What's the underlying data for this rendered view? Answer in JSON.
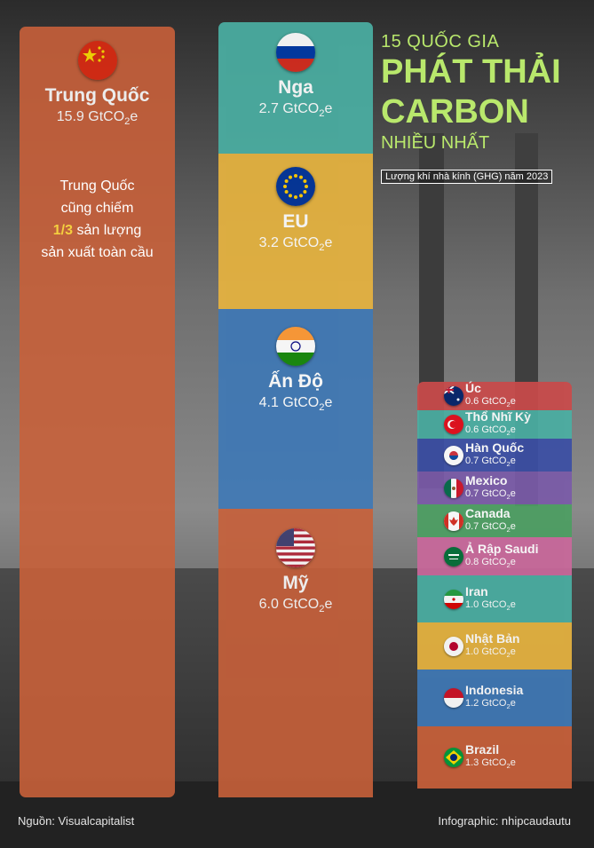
{
  "title": {
    "line1": "15 QUỐC GIA",
    "line2": "PHÁT THẢI",
    "line3": "CARBON",
    "line4": "NHIỀU NHẤT",
    "subtitle": "Lượng khí nhà kính (GHG) năm 2023"
  },
  "unit": "GtCO2e",
  "china_note": {
    "line1": "Trung Quốc",
    "line2": "cũng chiếm",
    "highlight": "1/3",
    "line3": " sản lượng",
    "line4": "sản xuất toàn cầu"
  },
  "footer": {
    "source": "Nguồn: Visualcapitalist",
    "credit": "Infographic: nhipcaudautu"
  },
  "colors": {
    "china": "#c8603a",
    "russia": "#4aaea2",
    "eu": "#e6b33f",
    "india": "#3f78b5",
    "usa": "#c8603a",
    "title": "#b9e86c"
  },
  "chart_data": {
    "type": "bar",
    "title": "15 QUỐC GIA PHÁT THẢI CARBON NHIỀU NHẤT",
    "subtitle": "Lượng khí nhà kính (GHG) năm 2023",
    "unit": "GtCO2e",
    "large": [
      {
        "name": "Trung Quốc",
        "value": 15.9,
        "value_text": "15.9 GtCO",
        "flag": "china-flag-icon"
      },
      {
        "name": "Nga",
        "value": 2.7,
        "value_text": "2.7 GtCO",
        "flag": "russia-flag-icon"
      },
      {
        "name": "EU",
        "value": 3.2,
        "value_text": "3.2 GtCO",
        "flag": "eu-flag-icon"
      },
      {
        "name": "Ấn Độ",
        "value": 4.1,
        "value_text": "4.1 GtCO",
        "flag": "india-flag-icon"
      },
      {
        "name": "Mỹ",
        "value": 6.0,
        "value_text": "6.0 GtCO",
        "flag": "usa-flag-icon"
      }
    ],
    "small": [
      {
        "name": "Úc",
        "value": 0.6,
        "value_text": "0.6 GtCO",
        "color": "#c94a4a",
        "flag": "australia-flag-icon"
      },
      {
        "name": "Thổ Nhĩ Kỳ",
        "value": 0.6,
        "value_text": "0.6 GtCO",
        "color": "#4aaea2",
        "flag": "turkey-flag-icon"
      },
      {
        "name": "Hàn Quốc",
        "value": 0.7,
        "value_text": "0.7 GtCO",
        "color": "#3b4fa5",
        "flag": "korea-flag-icon"
      },
      {
        "name": "Mexico",
        "value": 0.7,
        "value_text": "0.7 GtCO",
        "color": "#7a5aa8",
        "flag": "mexico-flag-icon"
      },
      {
        "name": "Canada",
        "value": 0.7,
        "value_text": "0.7 GtCO",
        "color": "#4c9e62",
        "flag": "canada-flag-icon"
      },
      {
        "name": "Ả Rập Saudi",
        "value": 0.8,
        "value_text": "0.8 GtCO",
        "color": "#c9689b",
        "flag": "saudi-flag-icon"
      },
      {
        "name": "Iran",
        "value": 1.0,
        "value_text": "1.0 GtCO",
        "color": "#4aaea2",
        "flag": "iran-flag-icon"
      },
      {
        "name": "Nhật Bản",
        "value": 1.0,
        "value_text": "1.0 GtCO",
        "color": "#e6b33f",
        "flag": "japan-flag-icon"
      },
      {
        "name": "Indonesia",
        "value": 1.2,
        "value_text": "1.2 GtCO",
        "color": "#3f78b5",
        "flag": "indonesia-flag-icon"
      },
      {
        "name": "Brazil",
        "value": 1.3,
        "value_text": "1.3 GtCO",
        "color": "#c8603a",
        "flag": "brazil-flag-icon"
      }
    ]
  }
}
